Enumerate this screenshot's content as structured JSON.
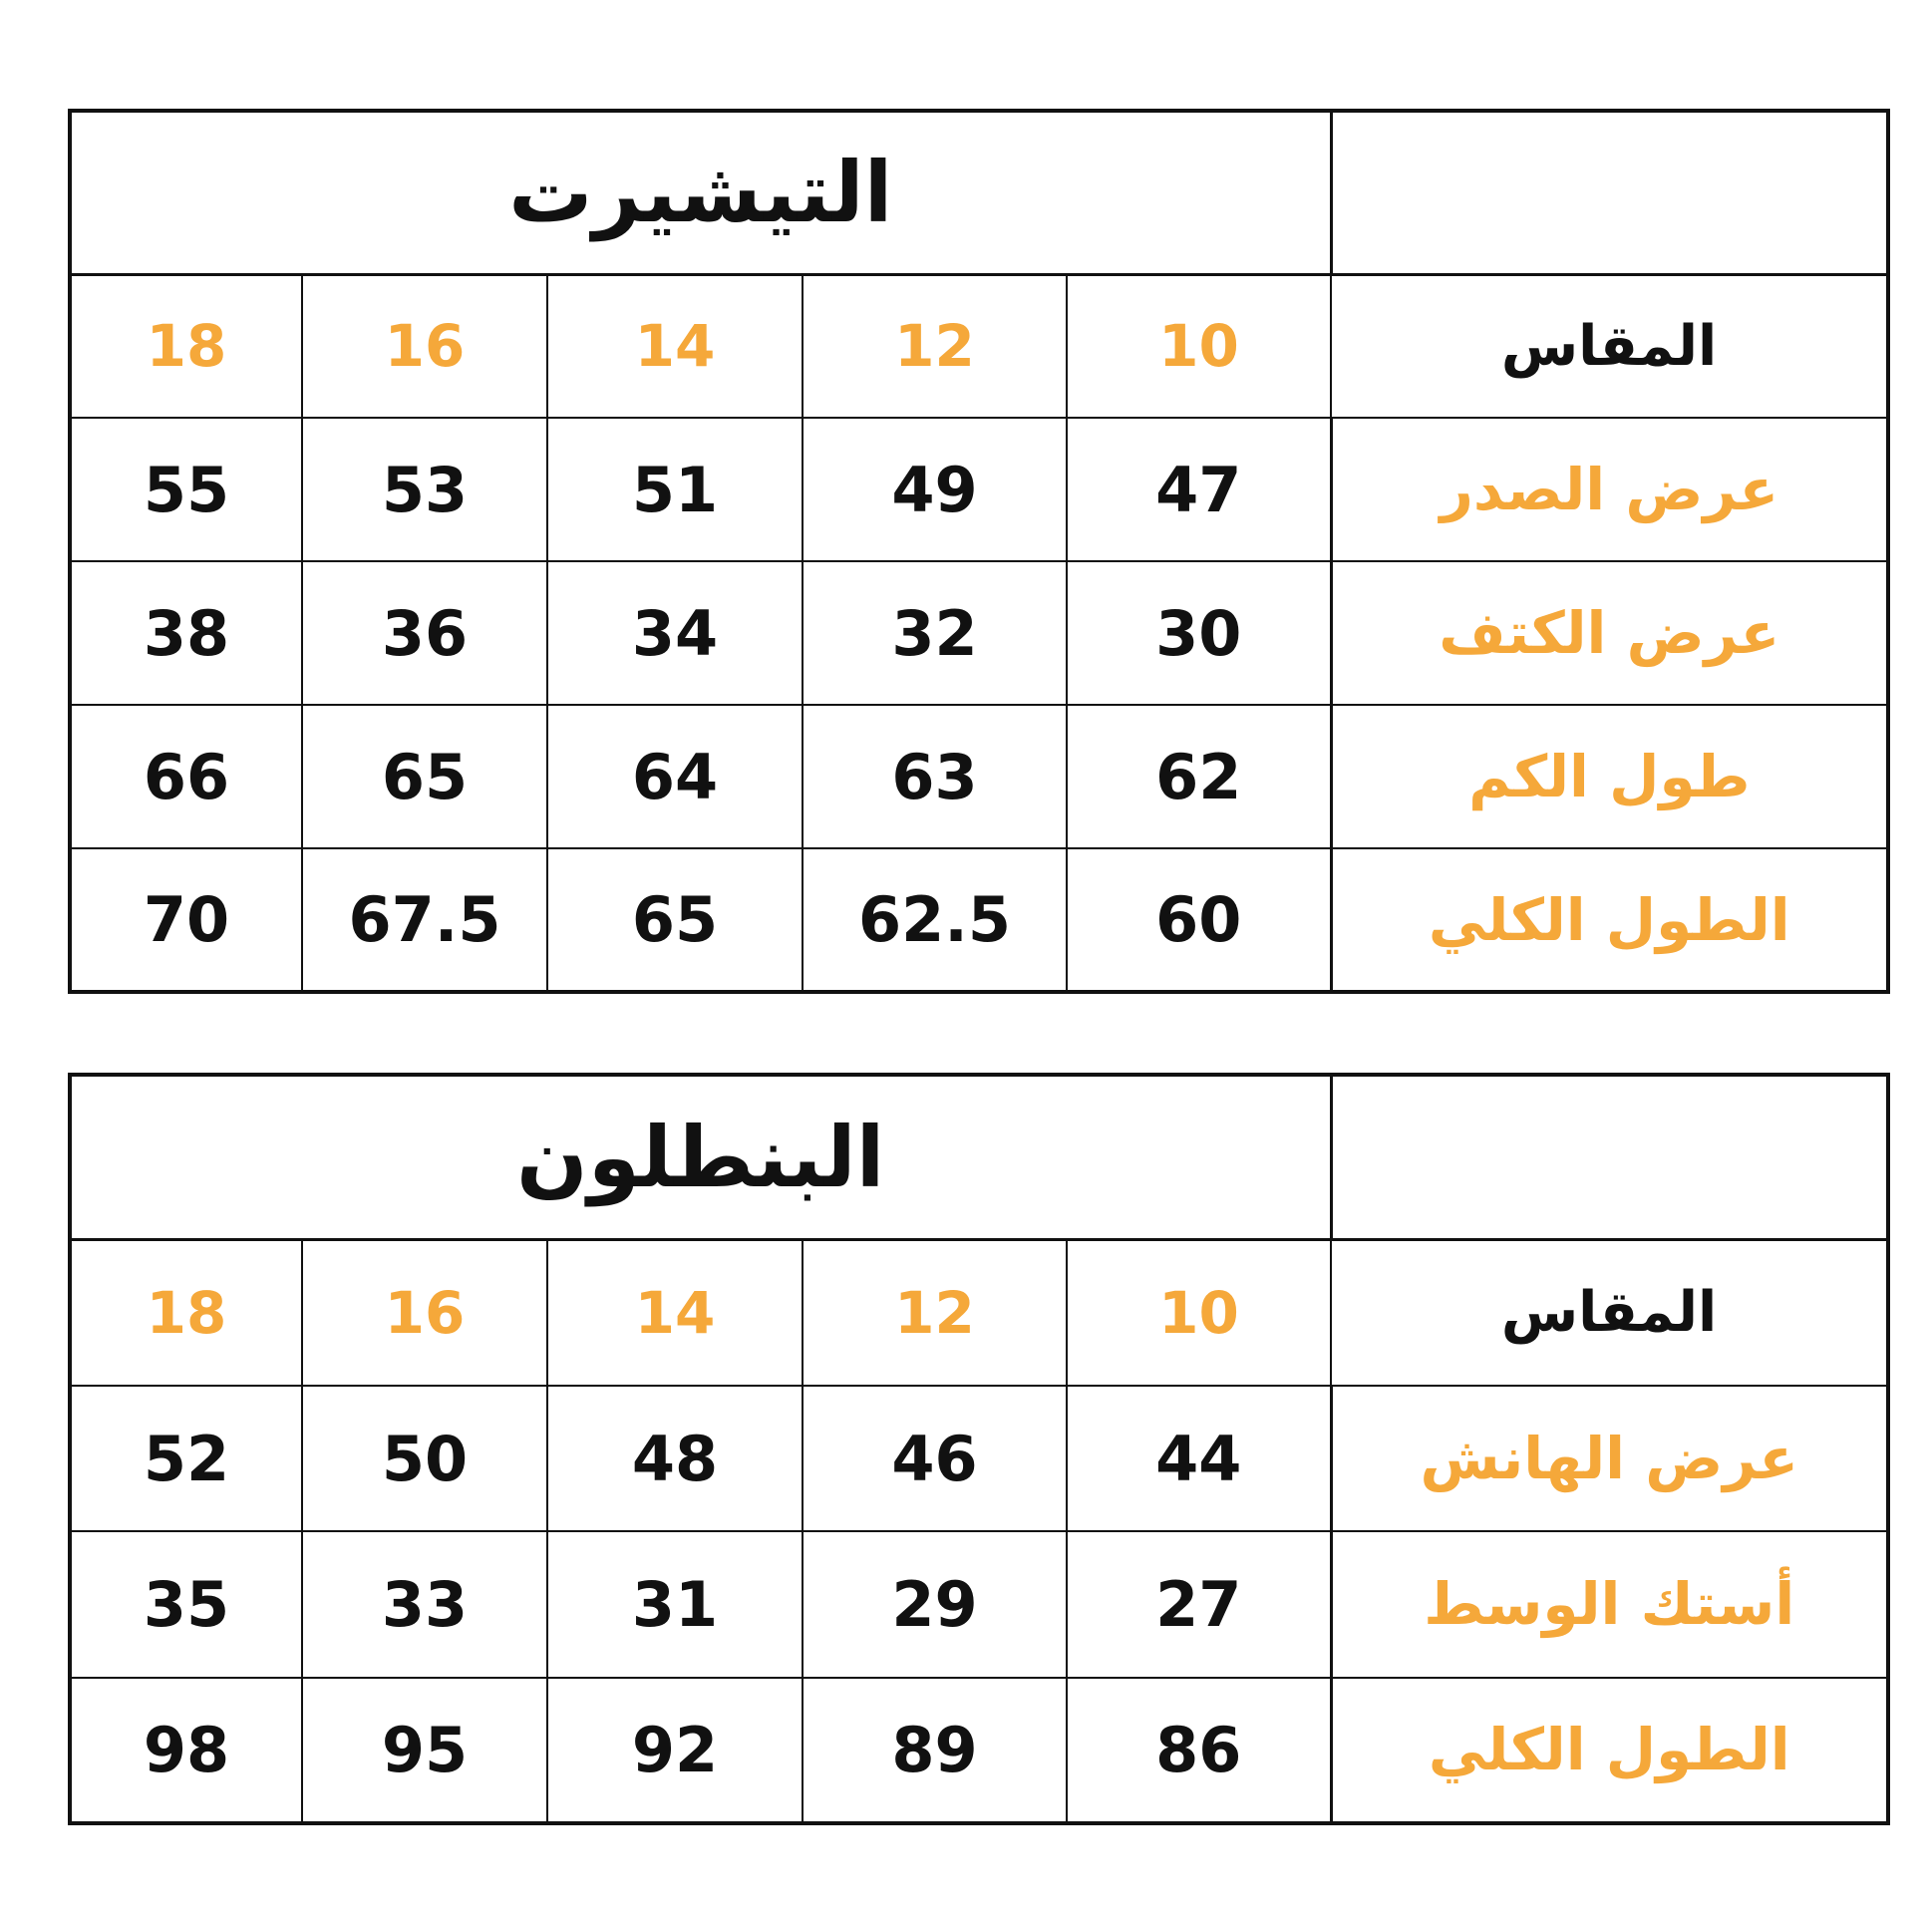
{
  "colors": {
    "accent": "#f5a83a",
    "text": "#111111",
    "border": "#111111"
  },
  "tables": [
    {
      "title": "التيشيرت",
      "size_label": "المقاس",
      "sizes": [
        "10",
        "12",
        "14",
        "16",
        "18"
      ],
      "rows": [
        {
          "label": "عرض الصدر",
          "values": [
            "47",
            "49",
            "51",
            "53",
            "55"
          ]
        },
        {
          "label": "عرض الكتف",
          "values": [
            "30",
            "32",
            "34",
            "36",
            "38"
          ]
        },
        {
          "label": "طول الكم",
          "values": [
            "62",
            "63",
            "64",
            "65",
            "66"
          ]
        },
        {
          "label": "الطول الكلي",
          "values": [
            "60",
            "62.5",
            "65",
            "67.5",
            "70"
          ]
        }
      ]
    },
    {
      "title": "البنطلون",
      "size_label": "المقاس",
      "sizes": [
        "10",
        "12",
        "14",
        "16",
        "18"
      ],
      "rows": [
        {
          "label": "عرض الهانش",
          "values": [
            "44",
            "46",
            "48",
            "50",
            "52"
          ]
        },
        {
          "label": "أستك الوسط",
          "values": [
            "27",
            "29",
            "31",
            "33",
            "35"
          ]
        },
        {
          "label": "الطول الكلي",
          "values": [
            "86",
            "89",
            "92",
            "95",
            "98"
          ]
        }
      ]
    }
  ]
}
